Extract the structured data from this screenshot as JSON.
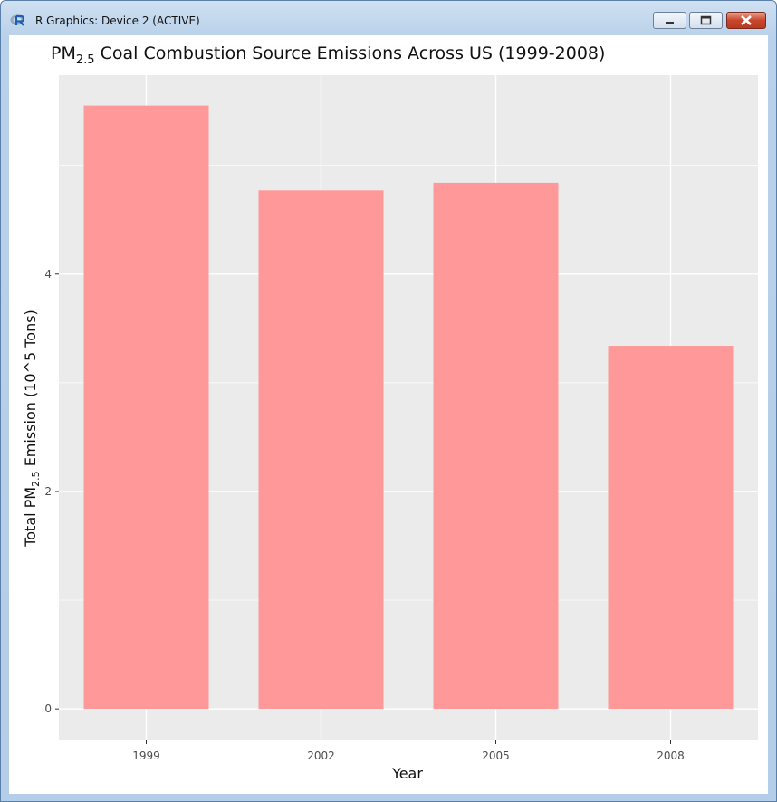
{
  "window": {
    "title": "R Graphics: Device 2 (ACTIVE)",
    "app_icon": "r-logo-icon",
    "buttons": [
      "minimize-icon",
      "maximize-icon",
      "close-icon"
    ]
  },
  "colors": {
    "bar_fill": "#ff9999",
    "panel_background": "#ebebeb",
    "gridline": "#ffffff"
  },
  "chart_data": {
    "type": "bar",
    "title_prefix": "PM",
    "title_sub": "2.5",
    "title_rest": " Coal Combustion Source Emissions Across US (1999-2008)",
    "xlabel": "Year",
    "ylabel_prefix": "Total PM",
    "ylabel_sub": "2.5",
    "ylabel_rest": " Emission (10^5 Tons)",
    "categories": [
      "1999",
      "2002",
      "2005",
      "2008"
    ],
    "values": [
      5.55,
      4.77,
      4.84,
      3.34
    ],
    "ylim": [
      -0.29,
      5.83
    ],
    "yticks": [
      0,
      2,
      4
    ],
    "grid": true,
    "legend": "none"
  }
}
